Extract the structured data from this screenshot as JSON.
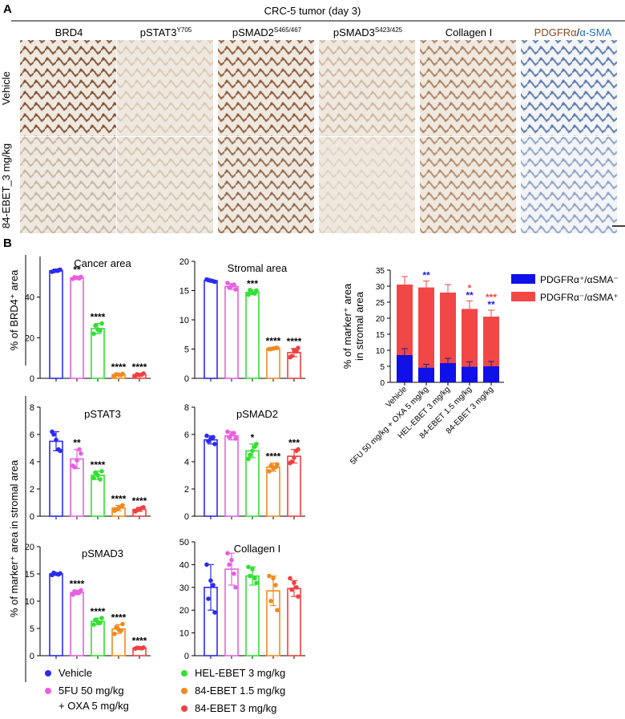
{
  "panel_a": {
    "letter": "A",
    "title": "CRC-5 tumor (day 3)",
    "stain_labels": [
      {
        "base": "BRD4",
        "sup": ""
      },
      {
        "base": "pSTAT3",
        "sup": "Y705"
      },
      {
        "base": "pSMAD2",
        "sup": "S465/467"
      },
      {
        "base": "pSMAD3",
        "sup": "S423/425"
      },
      {
        "base": "Collagen I",
        "sup": ""
      },
      {
        "base": "",
        "sup": ""
      }
    ],
    "pdgfr_label": {
      "part1": "PDGFRα",
      "sep": "/",
      "part2": "α-SMA",
      "color1": "#8b4a1f",
      "color2": "#1e6fc4"
    },
    "row_labels": [
      "Vehicle",
      "84-EBET_3 mg/kg"
    ],
    "tiles": [
      [
        "#7a4a2c",
        "#d8c8b4",
        "#8a5433",
        "#cdb59e",
        "#a87b5a",
        "#5474a6"
      ],
      [
        "#c2b4a4",
        "#d0c4b4",
        "#8e6448",
        "#ddd2c4",
        "#b08868",
        "#8aa0c2"
      ]
    ]
  },
  "panel_b": {
    "letter": "B",
    "ylabel_top": "% of BRD4⁺ area",
    "ylabel_mid": "% of marker⁺ area in stromal area",
    "ylabel_right_line1": "% of marker⁺ area",
    "ylabel_right_line2": "in stromal area"
  },
  "colors": {
    "vehicle": "#2b2bf0",
    "fu": "#e860e0",
    "hel": "#33e033",
    "ebet15": "#f08a1e",
    "ebet3": "#f04040",
    "stack_blue": "#1010e8",
    "stack_red": "#f24747"
  },
  "legend": {
    "items": [
      {
        "label": "Vehicle",
        "color_key": "vehicle"
      },
      {
        "label": "5FU 50 mg/kg",
        "label2": "+ OXA 5 mg/kg",
        "color_key": "fu"
      },
      {
        "label": "HEL-EBET 3 mg/kg",
        "color_key": "hel"
      },
      {
        "label": "84-EBET 1.5 mg/kg",
        "color_key": "ebet15"
      },
      {
        "label": "84-EBET 3 mg/kg",
        "color_key": "ebet3"
      }
    ]
  },
  "chart_data": [
    {
      "type": "bar",
      "title": "Cancer area",
      "categories": [
        "Vehicle",
        "5FU 50 mg/kg + OXA 5 mg/kg",
        "HEL-EBET 3 mg/kg",
        "84-EBET 1.5 mg/kg",
        "84-EBET 3 mg/kg"
      ],
      "values": [
        53,
        49.5,
        24.5,
        1.8,
        1.8
      ],
      "errors": [
        0.8,
        0.8,
        2.5,
        0.5,
        0.6
      ],
      "points": [
        [
          52.5,
          53.5,
          53,
          52.8,
          53.2
        ],
        [
          49,
          50,
          49.5,
          49.8,
          49.2
        ],
        [
          22,
          27,
          24,
          26,
          23.5
        ],
        [
          1.2,
          2.2,
          1.8,
          2,
          1.6
        ],
        [
          1.2,
          2.4,
          1.6,
          2,
          1.8
        ]
      ],
      "significance": [
        "",
        "**",
        "****",
        "****",
        "****"
      ],
      "ylim": [
        0,
        60
      ],
      "yticks": [
        0,
        20,
        40
      ],
      "grid": false
    },
    {
      "type": "bar",
      "title": "Stromal area",
      "categories": [
        "Vehicle",
        "5FU 50 mg/kg + OXA 5 mg/kg",
        "HEL-EBET 3 mg/kg",
        "84-EBET 1.5 mg/kg",
        "84-EBET 3 mg/kg"
      ],
      "values": [
        16.7,
        15.7,
        14.7,
        5.1,
        4.4
      ],
      "errors": [
        0.2,
        0.5,
        0.4,
        0.15,
        0.7
      ],
      "points": [
        [
          16.9,
          16.5,
          16.7,
          16.8,
          16.6
        ],
        [
          16.3,
          15.2,
          15.8,
          15.5,
          16
        ],
        [
          14.3,
          15,
          14.6,
          15.1,
          14.5
        ],
        [
          5,
          5.2,
          5.1,
          5,
          5.2
        ],
        [
          3.6,
          5.2,
          4.8,
          3.8,
          4.6
        ]
      ],
      "significance": [
        "",
        "",
        "***",
        "****",
        "****"
      ],
      "ylim": [
        0,
        20
      ],
      "yticks": [
        0,
        5,
        10,
        15,
        20
      ],
      "grid": false
    },
    {
      "type": "bar",
      "title": "pSTAT3",
      "categories": [
        "Vehicle",
        "5FU 50 mg/kg + OXA 5 mg/kg",
        "HEL-EBET 3 mg/kg",
        "84-EBET 1.5 mg/kg",
        "84-EBET 3 mg/kg"
      ],
      "values": [
        5.5,
        4.2,
        3.0,
        0.6,
        0.5
      ],
      "errors": [
        0.7,
        0.7,
        0.3,
        0.2,
        0.15
      ],
      "points": [
        [
          6.2,
          4.8,
          5.6,
          6,
          4.9
        ],
        [
          3.7,
          4.6,
          4.1,
          3.6,
          4.9
        ],
        [
          2.8,
          3.3,
          3,
          3.2,
          2.7
        ],
        [
          0.4,
          0.8,
          0.6,
          0.5,
          0.7
        ],
        [
          0.35,
          0.65,
          0.5,
          0.45,
          0.6
        ]
      ],
      "significance": [
        "",
        "**",
        "****",
        "****",
        "****"
      ],
      "ylim": [
        0,
        8
      ],
      "yticks": [
        0,
        2,
        4,
        6,
        8
      ],
      "grid": false
    },
    {
      "type": "bar",
      "title": "pSMAD2",
      "categories": [
        "Vehicle",
        "5FU 50 mg/kg + OXA 5 mg/kg",
        "HEL-EBET 3 mg/kg",
        "84-EBET 1.5 mg/kg",
        "84-EBET 3 mg/kg"
      ],
      "values": [
        5.6,
        5.9,
        4.8,
        3.6,
        4.4
      ],
      "errors": [
        0.3,
        0.3,
        0.5,
        0.3,
        0.5
      ],
      "points": [
        [
          5.9,
          5.3,
          5.7,
          5.5,
          5.8
        ],
        [
          6.2,
          5.7,
          6,
          5.8,
          6.1
        ],
        [
          4.2,
          5.3,
          4.8,
          4.5,
          5.1
        ],
        [
          3.3,
          3.8,
          3.5,
          3.7,
          3.6
        ],
        [
          3.9,
          4.9,
          4.3,
          4,
          4.8
        ]
      ],
      "significance": [
        "",
        "",
        "*",
        "****",
        "***"
      ],
      "ylim": [
        0,
        8
      ],
      "yticks": [
        0,
        2,
        4,
        6,
        8
      ],
      "grid": false
    },
    {
      "type": "bar",
      "title": "pSMAD3",
      "categories": [
        "Vehicle",
        "5FU 50 mg/kg + OXA 5 mg/kg",
        "HEL-EBET 3 mg/kg",
        "84-EBET 1.5 mg/kg",
        "84-EBET 3 mg/kg"
      ],
      "values": [
        15,
        11.6,
        6.3,
        4.9,
        1.4
      ],
      "errors": [
        0.2,
        0.4,
        0.6,
        0.8,
        0.15
      ],
      "points": [
        [
          14.8,
          15.1,
          15,
          15.2,
          14.9
        ],
        [
          11.2,
          12,
          11.5,
          11.8,
          11.6
        ],
        [
          5.7,
          6.9,
          6.2,
          6.6,
          6
        ],
        [
          4,
          5.8,
          4.8,
          5.2,
          4.6
        ],
        [
          1.3,
          1.5,
          1.4,
          1.45,
          1.35
        ]
      ],
      "significance": [
        "",
        "****",
        "****",
        "****",
        "****"
      ],
      "ylim": [
        0,
        20
      ],
      "yticks": [
        0,
        5,
        10,
        15,
        20
      ],
      "grid": false
    },
    {
      "type": "bar",
      "title": "Collagen I",
      "categories": [
        "Vehicle",
        "5FU 50 mg/kg + OXA 5 mg/kg",
        "HEL-EBET 3 mg/kg",
        "84-EBET 1.5 mg/kg",
        "84-EBET 3 mg/kg"
      ],
      "values": [
        30,
        38,
        35,
        28.5,
        29.5
      ],
      "errors": [
        10,
        7,
        4,
        6.5,
        3.5
      ],
      "points": [
        [
          40,
          19,
          33,
          25,
          31
        ],
        [
          45,
          30,
          42,
          40,
          36
        ],
        [
          39,
          32,
          38,
          35,
          34
        ],
        [
          35,
          20,
          34,
          24,
          31
        ],
        [
          34,
          26,
          32,
          29,
          30
        ]
      ],
      "significance": [
        "",
        "",
        "",
        "",
        ""
      ],
      "ylim": [
        0,
        50
      ],
      "yticks": [
        0,
        10,
        20,
        30,
        40,
        50
      ],
      "grid": false
    },
    {
      "type": "bar",
      "stacked": true,
      "title": "",
      "categories": [
        "Vehicle",
        "5FU 50 mg/kg + OXA 5 mg/kg",
        "HEL-EBET 3 mg/kg",
        "84-EBET 1.5 mg/kg",
        "84-EBET 3 mg/kg"
      ],
      "series": [
        {
          "name": "PDGFRα⁺/αSMA⁻",
          "values": [
            8.5,
            4.6,
            6.0,
            4.9,
            5.0
          ],
          "errors": [
            2.0,
            1.0,
            1.5,
            1.5,
            1.5
          ]
        },
        {
          "name": "PDGFRα⁻/αSMA⁺",
          "values": [
            22.0,
            25.0,
            22.0,
            18.0,
            15.5
          ],
          "errors": [
            2.5,
            2.0,
            2.5,
            2.5,
            2.0
          ]
        }
      ],
      "sig_red": [
        "",
        "",
        "",
        "*",
        "***"
      ],
      "sig_blue": [
        "",
        "**",
        "",
        "**",
        "**"
      ],
      "ylim": [
        0,
        35
      ],
      "yticks": [
        0,
        5,
        10,
        15,
        20,
        25,
        30,
        35
      ],
      "grid": false,
      "legend_position": "top-right"
    }
  ]
}
